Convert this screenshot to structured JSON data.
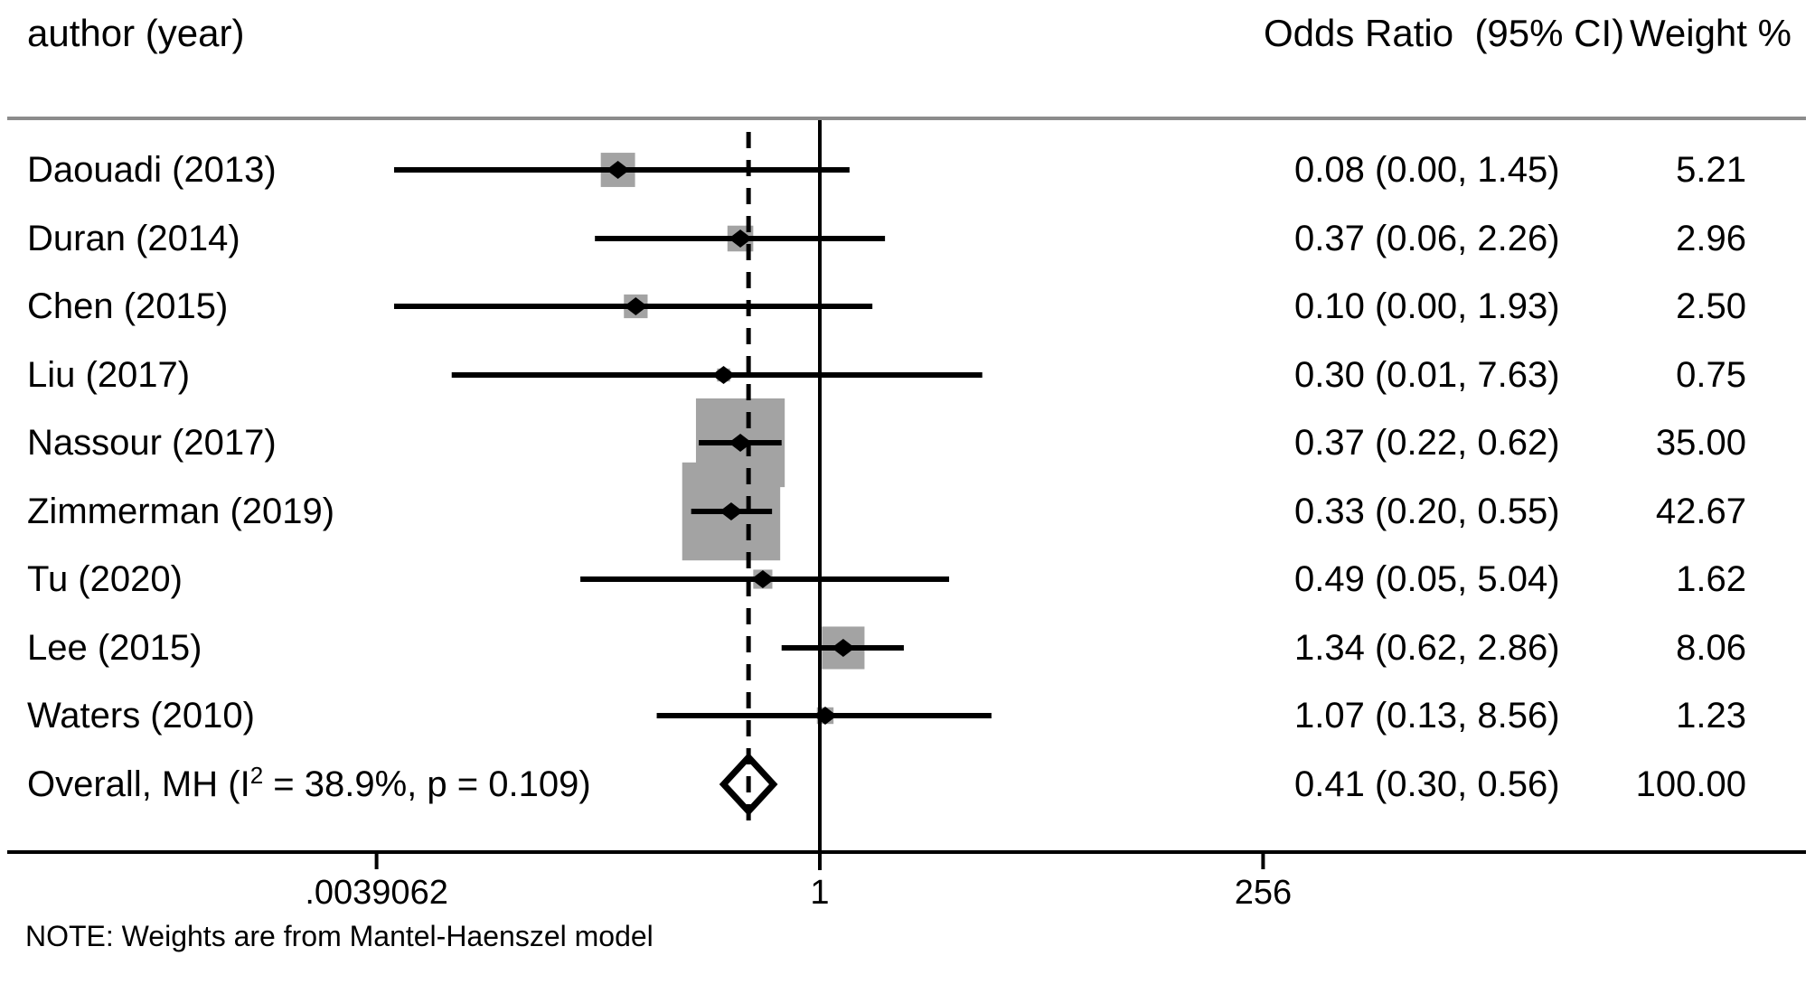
{
  "header": {
    "author": "author (year)",
    "odds_ratio": "Odds Ratio  (95% CI)",
    "weight": "Weight %"
  },
  "note": "NOTE: Weights are from Mantel-Haenszel model",
  "chart_data": {
    "type": "forest",
    "xscale": "log2",
    "x_axis_range": [
      0.0039062,
      256
    ],
    "null_line_value": 1,
    "overall_line_value": 0.41,
    "xlabel_ticks": [
      {
        "label": ".0039062",
        "value": 0.0039062
      },
      {
        "label": "1",
        "value": 1
      },
      {
        "label": "256",
        "value": 256
      }
    ],
    "studies": [
      {
        "label": "Daouadi (2013)",
        "or": 0.08,
        "ci_low": 0.0,
        "ci_high": 1.45,
        "or_ci_text": "0.08 (0.00, 1.45)",
        "weight": 5.21,
        "weight_text": "5.21"
      },
      {
        "label": "Duran (2014)",
        "or": 0.37,
        "ci_low": 0.06,
        "ci_high": 2.26,
        "or_ci_text": "0.37 (0.06, 2.26)",
        "weight": 2.96,
        "weight_text": "2.96"
      },
      {
        "label": "Chen (2015)",
        "or": 0.1,
        "ci_low": 0.0,
        "ci_high": 1.93,
        "or_ci_text": "0.10 (0.00, 1.93)",
        "weight": 2.5,
        "weight_text": "2.50"
      },
      {
        "label": "Liu (2017)",
        "or": 0.3,
        "ci_low": 0.01,
        "ci_high": 7.63,
        "or_ci_text": "0.30 (0.01, 7.63)",
        "weight": 0.75,
        "weight_text": "0.75"
      },
      {
        "label": "Nassour (2017)",
        "or": 0.37,
        "ci_low": 0.22,
        "ci_high": 0.62,
        "or_ci_text": "0.37 (0.22, 0.62)",
        "weight": 35.0,
        "weight_text": "35.00"
      },
      {
        "label": "Zimmerman (2019)",
        "or": 0.33,
        "ci_low": 0.2,
        "ci_high": 0.55,
        "or_ci_text": "0.33 (0.20, 0.55)",
        "weight": 42.67,
        "weight_text": "42.67"
      },
      {
        "label": "Tu (2020)",
        "or": 0.49,
        "ci_low": 0.05,
        "ci_high": 5.04,
        "or_ci_text": "0.49 (0.05, 5.04)",
        "weight": 1.62,
        "weight_text": "1.62"
      },
      {
        "label": "Lee (2015)",
        "or": 1.34,
        "ci_low": 0.62,
        "ci_high": 2.86,
        "or_ci_text": "1.34 (0.62, 2.86)",
        "weight": 8.06,
        "weight_text": "8.06"
      },
      {
        "label": "Waters (2010)",
        "or": 1.07,
        "ci_low": 0.13,
        "ci_high": 8.56,
        "or_ci_text": "1.07 (0.13, 8.56)",
        "weight": 1.23,
        "weight_text": "1.23"
      }
    ],
    "overall": {
      "label_pre": "Overall, MH (I",
      "label_sup": "2",
      "label_post": " = 38.9%, p = 0.109)",
      "or": 0.41,
      "ci_low": 0.3,
      "ci_high": 0.56,
      "or_ci_text": "0.41 (0.30, 0.56)",
      "weight_text": "100.00"
    },
    "colors": {
      "square": "#a3a3a3",
      "line": "#000000",
      "header_rule": "#8c8c8c",
      "background": "#ffffff"
    }
  }
}
